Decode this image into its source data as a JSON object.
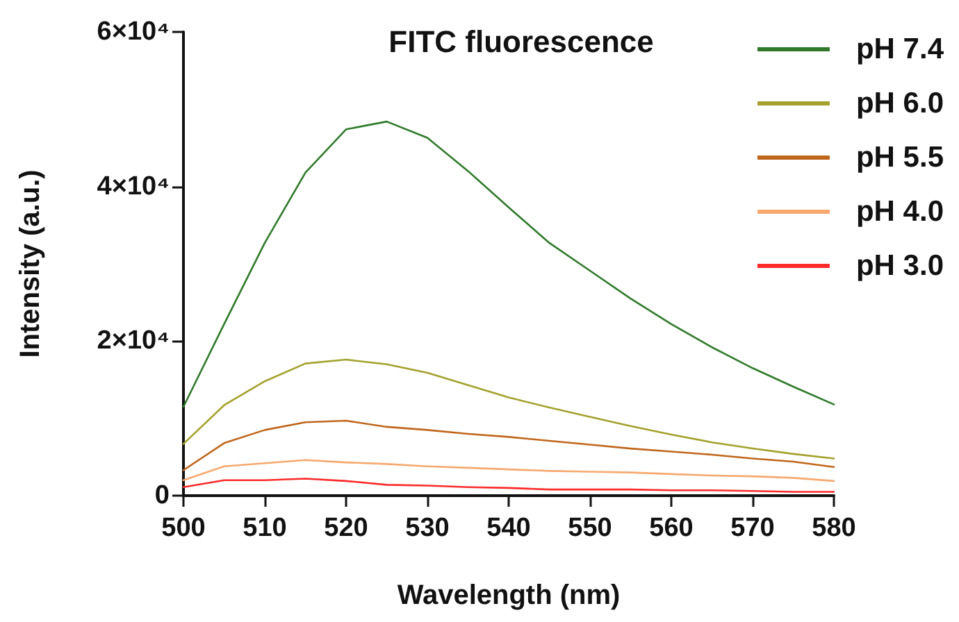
{
  "chart_data": {
    "type": "line",
    "title": "FITC fluorescence",
    "xlabel": "Wavelength (nm)",
    "ylabel": "Intensity (a.u.)",
    "x": [
      500,
      505,
      510,
      515,
      520,
      525,
      530,
      535,
      540,
      545,
      550,
      555,
      560,
      565,
      570,
      575,
      580
    ],
    "series": [
      {
        "name": "pH 7.4",
        "color": "#2f7a2a",
        "values": [
          11500,
          22200,
          32700,
          41800,
          47400,
          48400,
          46300,
          42000,
          37300,
          32700,
          29100,
          25500,
          22200,
          19200,
          16500,
          14100,
          11800
        ]
      },
      {
        "name": "pH 6.0",
        "color": "#a3a12c",
        "values": [
          6700,
          11700,
          14800,
          17100,
          17600,
          17000,
          15900,
          14300,
          12700,
          11400,
          10200,
          9000,
          7900,
          6900,
          6100,
          5400,
          4800
        ]
      },
      {
        "name": "pH 5.5",
        "color": "#c0661b",
        "values": [
          3300,
          6800,
          8500,
          9500,
          9700,
          8900,
          8500,
          8000,
          7600,
          7100,
          6600,
          6100,
          5700,
          5300,
          4800,
          4400,
          3700
        ]
      },
      {
        "name": "pH 4.0",
        "color": "#f7a86e",
        "values": [
          2000,
          3800,
          4200,
          4600,
          4300,
          4100,
          3800,
          3600,
          3400,
          3200,
          3100,
          3000,
          2800,
          2600,
          2500,
          2300,
          1900
        ]
      },
      {
        "name": "pH 3.0",
        "color": "#ff2a2a",
        "values": [
          1100,
          2000,
          2000,
          2200,
          1900,
          1400,
          1300,
          1100,
          1000,
          800,
          800,
          800,
          700,
          700,
          600,
          500,
          500
        ]
      }
    ],
    "xlim": [
      500,
      580
    ],
    "xticks": [
      500,
      510,
      520,
      530,
      540,
      550,
      560,
      570,
      580
    ],
    "ylim": [
      0,
      60000
    ],
    "yticks": [
      0,
      {
        "value": 20000,
        "label": "2×10⁴"
      },
      {
        "value": 40000,
        "label": "4×10⁴"
      },
      {
        "value": 60000,
        "label": "6×10⁴"
      }
    ],
    "grid": false,
    "legend": "top right",
    "marker": "none",
    "line_style": "solid"
  }
}
